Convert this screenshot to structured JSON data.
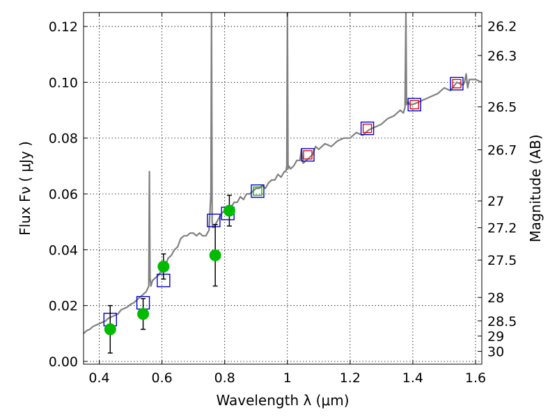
{
  "chart_data": {
    "type": "line",
    "xlabel": "Wavelength  λ (μm)",
    "ylabel": "Flux  Fν  ( μJy )",
    "ylabel_right": "Magnitude (AB)",
    "xlim": [
      0.35,
      1.62
    ],
    "ylim": [
      -0.001,
      0.125
    ],
    "grid": true,
    "x_ticks": [
      {
        "value": 0.4,
        "label": "0.4"
      },
      {
        "value": 0.6,
        "label": "0.6"
      },
      {
        "value": 0.8,
        "label": "0.8"
      },
      {
        "value": 1.0,
        "label": "1"
      },
      {
        "value": 1.2,
        "label": "1.2"
      },
      {
        "value": 1.4,
        "label": "1.4"
      },
      {
        "value": 1.6,
        "label": "1.6"
      }
    ],
    "y_ticks": [
      {
        "value": 0.0,
        "label": "0.00"
      },
      {
        "value": 0.02,
        "label": "0.02"
      },
      {
        "value": 0.04,
        "label": "0.04"
      },
      {
        "value": 0.06,
        "label": "0.06"
      },
      {
        "value": 0.08,
        "label": "0.08"
      },
      {
        "value": 0.1,
        "label": "0.10"
      },
      {
        "value": 0.12,
        "label": "0.12"
      }
    ],
    "right_ticks": [
      {
        "flux": 0.1202,
        "label": "26.2"
      },
      {
        "flux": 0.1096,
        "label": "26.3"
      },
      {
        "flux": 0.0912,
        "label": "26.5"
      },
      {
        "flux": 0.0758,
        "label": "26.7"
      },
      {
        "flux": 0.0575,
        "label": "27"
      },
      {
        "flux": 0.0479,
        "label": "27.2"
      },
      {
        "flux": 0.0363,
        "label": "27.5"
      },
      {
        "flux": 0.0229,
        "label": "28"
      },
      {
        "flux": 0.0145,
        "label": "28.5"
      },
      {
        "flux": 0.0091,
        "label": "29"
      },
      {
        "flux": 0.0036,
        "label": "30"
      }
    ],
    "colors": {
      "spectrum": "#808080",
      "observed": "#00bb00",
      "model_box": "#0000cc",
      "inner_box": "#dd0000",
      "inner_box_green": "#00aa00"
    },
    "series": [
      {
        "kind": "spectrum",
        "x": [
          0.35,
          0.36,
          0.37,
          0.38,
          0.39,
          0.4,
          0.41,
          0.42,
          0.43,
          0.44,
          0.45,
          0.46,
          0.47,
          0.48,
          0.49,
          0.5,
          0.51,
          0.52,
          0.53,
          0.54,
          0.55,
          0.558,
          0.56,
          0.562,
          0.565,
          0.57,
          0.58,
          0.59,
          0.6,
          0.61,
          0.62,
          0.63,
          0.64,
          0.65,
          0.66,
          0.67,
          0.68,
          0.69,
          0.7,
          0.71,
          0.72,
          0.73,
          0.74,
          0.75,
          0.756,
          0.758,
          0.76,
          0.762,
          0.765,
          0.77,
          0.78,
          0.79,
          0.8,
          0.81,
          0.82,
          0.83,
          0.84,
          0.85,
          0.86,
          0.87,
          0.88,
          0.89,
          0.9,
          0.91,
          0.92,
          0.93,
          0.94,
          0.95,
          0.96,
          0.97,
          0.98,
          0.99,
          0.995,
          0.998,
          1.0,
          1.002,
          1.005,
          1.01,
          1.02,
          1.03,
          1.04,
          1.045,
          1.05,
          1.06,
          1.07,
          1.08,
          1.09,
          1.1,
          1.12,
          1.14,
          1.16,
          1.18,
          1.2,
          1.22,
          1.24,
          1.26,
          1.28,
          1.3,
          1.32,
          1.34,
          1.36,
          1.37,
          1.375,
          1.378,
          1.38,
          1.385,
          1.39,
          1.4,
          1.42,
          1.44,
          1.46,
          1.48,
          1.5,
          1.52,
          1.54,
          1.56,
          1.565,
          1.57,
          1.575,
          1.58,
          1.6,
          1.62
        ],
        "y": [
          0.01,
          0.011,
          0.0115,
          0.0125,
          0.013,
          0.0135,
          0.014,
          0.0145,
          0.0155,
          0.016,
          0.0165,
          0.017,
          0.0185,
          0.019,
          0.0195,
          0.0205,
          0.021,
          0.022,
          0.023,
          0.024,
          0.025,
          0.027,
          0.068,
          0.03,
          0.027,
          0.029,
          0.03,
          0.031,
          0.033,
          0.034,
          0.037,
          0.038,
          0.04,
          0.041,
          0.044,
          0.045,
          0.045,
          0.046,
          0.046,
          0.045,
          0.046,
          0.045,
          0.045,
          0.047,
          0.06,
          0.125,
          0.05,
          0.048,
          0.048,
          0.049,
          0.051,
          0.053,
          0.054,
          0.055,
          0.055,
          0.057,
          0.057,
          0.059,
          0.058,
          0.06,
          0.06,
          0.061,
          0.062,
          0.062,
          0.063,
          0.062,
          0.064,
          0.065,
          0.065,
          0.067,
          0.066,
          0.068,
          0.068,
          0.07,
          0.125,
          0.069,
          0.07,
          0.069,
          0.07,
          0.072,
          0.072,
          0.076,
          0.071,
          0.072,
          0.073,
          0.074,
          0.077,
          0.076,
          0.078,
          0.077,
          0.079,
          0.08,
          0.08,
          0.082,
          0.081,
          0.083,
          0.084,
          0.085,
          0.087,
          0.088,
          0.09,
          0.089,
          0.091,
          0.125,
          0.092,
          0.093,
          0.092,
          0.092,
          0.093,
          0.094,
          0.095,
          0.096,
          0.098,
          0.097,
          0.1,
          0.099,
          0.1,
          0.103,
          0.098,
          0.101,
          0.101,
          0.1
        ],
        "name": ""
      },
      {
        "kind": "observed",
        "x": [
          0.435,
          0.54,
          0.605,
          0.77,
          0.815
        ],
        "y": [
          0.0115,
          0.017,
          0.034,
          0.038,
          0.054
        ],
        "yerr": [
          0.0085,
          0.0055,
          0.0045,
          0.011,
          0.0055
        ],
        "name": ""
      },
      {
        "kind": "model_boxes",
        "x": [
          0.435,
          0.54,
          0.605,
          0.765,
          0.81,
          0.905,
          1.065,
          1.255,
          1.405,
          1.54
        ],
        "y": [
          0.015,
          0.021,
          0.029,
          0.0505,
          0.053,
          0.061,
          0.074,
          0.0835,
          0.092,
          0.0995
        ],
        "inner": [
          "none",
          "none",
          "none",
          "none",
          "none",
          "green",
          "red",
          "red",
          "red",
          "red"
        ],
        "name": ""
      }
    ]
  }
}
